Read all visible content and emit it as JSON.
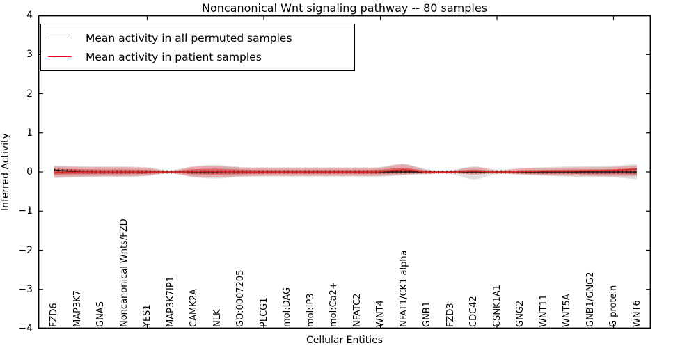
{
  "title": "Noncanonical Wnt signaling pathway -- 80 samples",
  "legend": {
    "items": [
      {
        "label": "Mean activity in all permuted samples",
        "color": "#000000"
      },
      {
        "label": "Mean activity in patient samples",
        "color": "#ff0000"
      }
    ]
  },
  "chart_data": {
    "type": "line",
    "title": "Noncanonical Wnt signaling pathway -- 80 samples",
    "xlabel": "Cellular Entities",
    "ylabel": "Inferred Activity",
    "ylim": [
      -4,
      4
    ],
    "yticks": [
      4,
      3,
      2,
      1,
      0,
      -1,
      -2,
      -3,
      -4
    ],
    "xtick_indices": [
      4,
      9,
      14,
      19,
      24
    ],
    "grid": false,
    "legend_position": "upper left",
    "categories": [
      "FZD6",
      "MAP3K7",
      "GNAS",
      "Noncanonical Wnts/FZD",
      "YES1",
      "MAP3K7IP1",
      "CAMK2A",
      "NLK",
      "GO:0007205",
      "PLCG1",
      "mol:DAG",
      "mol:IP3",
      "mol:Ca2+",
      "NFATC2",
      "WNT4",
      "NFAT1/CK1 alpha",
      "GNB1",
      "FZD3",
      "CDC42",
      "CSNK1A1",
      "GNG2",
      "WNT11",
      "WNT5A",
      "GNB1/GNG2",
      "G protein",
      "WNT6"
    ],
    "series": [
      {
        "name": "Mean activity in all permuted samples",
        "color": "#000000",
        "values": [
          0.05,
          0.01,
          0,
          0,
          0,
          0,
          0,
          0,
          0,
          0,
          0,
          0,
          0,
          0,
          0,
          0,
          0,
          0,
          0,
          0,
          0,
          0,
          0,
          0,
          0,
          0
        ]
      },
      {
        "name": "Mean activity in patient samples",
        "color": "#dd2222",
        "values": [
          -0.02,
          0,
          0,
          0,
          0,
          0,
          0.01,
          0.01,
          0,
          0,
          0,
          0,
          0,
          0,
          0.01,
          0.05,
          0,
          0,
          0.02,
          0,
          0.01,
          0.02,
          0.02,
          0.03,
          0.04,
          0.07
        ]
      }
    ],
    "bands": [
      {
        "name": "permuted-range",
        "color": "#999999",
        "opacity": 0.3,
        "upper": [
          0.17,
          0.15,
          0.14,
          0.14,
          0.12,
          0.05,
          0.15,
          0.18,
          0.13,
          0.12,
          0.12,
          0.12,
          0.12,
          0.12,
          0.13,
          0.21,
          0.07,
          0.05,
          0.14,
          0.06,
          0.1,
          0.12,
          0.14,
          0.15,
          0.16,
          0.2
        ],
        "lower": [
          -0.16,
          -0.14,
          -0.13,
          -0.13,
          -0.11,
          -0.05,
          -0.14,
          -0.17,
          -0.13,
          -0.12,
          -0.12,
          -0.12,
          -0.12,
          -0.12,
          -0.12,
          -0.09,
          -0.07,
          -0.05,
          -0.19,
          -0.06,
          -0.08,
          -0.1,
          -0.12,
          -0.13,
          -0.14,
          -0.19
        ]
      },
      {
        "name": "patient-range-outer",
        "color": "#e85555",
        "opacity": 0.38,
        "upper": [
          0.14,
          0.13,
          0.12,
          0.12,
          0.1,
          0.03,
          0.13,
          0.15,
          0.11,
          0.1,
          0.1,
          0.1,
          0.1,
          0.1,
          0.11,
          0.19,
          0.05,
          0.03,
          0.12,
          0.04,
          0.08,
          0.1,
          0.11,
          0.12,
          0.13,
          0.16
        ],
        "lower": [
          -0.13,
          -0.12,
          -0.11,
          -0.11,
          -0.09,
          -0.03,
          -0.12,
          -0.14,
          -0.11,
          -0.1,
          -0.1,
          -0.1,
          -0.1,
          -0.1,
          -0.1,
          -0.07,
          -0.05,
          -0.03,
          -0.07,
          -0.04,
          -0.06,
          -0.08,
          -0.09,
          -0.1,
          -0.11,
          -0.11
        ]
      },
      {
        "name": "patient-range-inner",
        "color": "#cc2a2a",
        "opacity": 0.55,
        "upper": [
          0.08,
          0.07,
          0.06,
          0.06,
          0.05,
          0.02,
          0.07,
          0.08,
          0.06,
          0.05,
          0.05,
          0.05,
          0.05,
          0.05,
          0.06,
          0.1,
          0.03,
          0.02,
          0.06,
          0.02,
          0.04,
          0.05,
          0.06,
          0.06,
          0.07,
          0.1
        ],
        "lower": [
          -0.07,
          -0.06,
          -0.06,
          -0.06,
          -0.05,
          -0.02,
          -0.06,
          -0.07,
          -0.06,
          -0.05,
          -0.05,
          -0.05,
          -0.05,
          -0.05,
          -0.05,
          -0.04,
          -0.03,
          -0.02,
          -0.04,
          -0.02,
          -0.04,
          -0.05,
          -0.05,
          -0.06,
          -0.06,
          -0.07
        ]
      }
    ]
  }
}
